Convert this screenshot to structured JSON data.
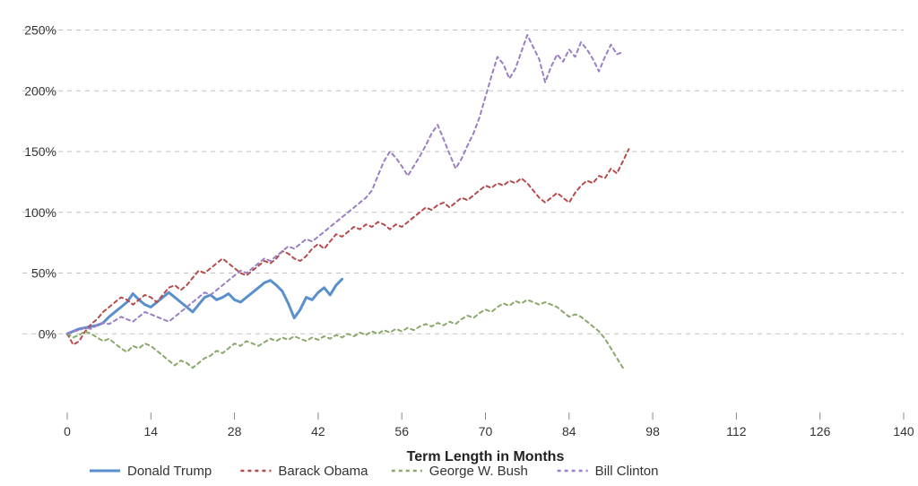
{
  "chart": {
    "type": "line",
    "background_color": "#ffffff",
    "grid_color": "#c0c0c0",
    "axis_label_color": "#333333",
    "axis_label_fontsize": 14,
    "xlabel": "Term Length in Months",
    "xlabel_fontsize": 16,
    "xlabel_fontweight": "bold",
    "xlim": [
      0,
      140
    ],
    "xtick_step": 14,
    "xticks": [
      0,
      14,
      28,
      42,
      56,
      70,
      84,
      98,
      112,
      126,
      140
    ],
    "ylim": [
      -50,
      260
    ],
    "yticks": [
      0,
      50,
      100,
      150,
      200,
      250
    ],
    "ytick_format": "percent",
    "series": [
      {
        "name": "Donald Trump",
        "color": "#5a8fce",
        "dash": "solid",
        "line_width": 3,
        "data": [
          [
            0,
            0
          ],
          [
            1,
            2
          ],
          [
            2,
            4
          ],
          [
            3,
            5
          ],
          [
            4,
            6
          ],
          [
            5,
            7
          ],
          [
            6,
            9
          ],
          [
            7,
            14
          ],
          [
            8,
            18
          ],
          [
            9,
            22
          ],
          [
            10,
            26
          ],
          [
            11,
            33
          ],
          [
            12,
            28
          ],
          [
            13,
            24
          ],
          [
            14,
            22
          ],
          [
            15,
            26
          ],
          [
            16,
            30
          ],
          [
            17,
            34
          ],
          [
            18,
            30
          ],
          [
            19,
            26
          ],
          [
            20,
            22
          ],
          [
            21,
            18
          ],
          [
            22,
            24
          ],
          [
            23,
            30
          ],
          [
            24,
            32
          ],
          [
            25,
            28
          ],
          [
            26,
            30
          ],
          [
            27,
            33
          ],
          [
            28,
            28
          ],
          [
            29,
            26
          ],
          [
            30,
            30
          ],
          [
            31,
            34
          ],
          [
            32,
            38
          ],
          [
            33,
            42
          ],
          [
            34,
            44
          ],
          [
            35,
            40
          ],
          [
            36,
            35
          ],
          [
            37,
            25
          ],
          [
            38,
            13
          ],
          [
            39,
            20
          ],
          [
            40,
            30
          ],
          [
            41,
            28
          ],
          [
            42,
            34
          ],
          [
            43,
            38
          ],
          [
            44,
            32
          ],
          [
            45,
            40
          ],
          [
            46,
            45
          ]
        ]
      },
      {
        "name": "Barack Obama",
        "color": "#b54a4a",
        "dash": "dashed",
        "line_width": 2,
        "data": [
          [
            0,
            0
          ],
          [
            1,
            -9
          ],
          [
            2,
            -6
          ],
          [
            3,
            2
          ],
          [
            4,
            8
          ],
          [
            5,
            12
          ],
          [
            6,
            18
          ],
          [
            7,
            22
          ],
          [
            8,
            26
          ],
          [
            9,
            30
          ],
          [
            10,
            28
          ],
          [
            11,
            24
          ],
          [
            12,
            28
          ],
          [
            13,
            32
          ],
          [
            14,
            30
          ],
          [
            15,
            26
          ],
          [
            16,
            32
          ],
          [
            17,
            38
          ],
          [
            18,
            40
          ],
          [
            19,
            36
          ],
          [
            20,
            40
          ],
          [
            21,
            46
          ],
          [
            22,
            52
          ],
          [
            23,
            50
          ],
          [
            24,
            54
          ],
          [
            25,
            58
          ],
          [
            26,
            62
          ],
          [
            27,
            58
          ],
          [
            28,
            54
          ],
          [
            29,
            50
          ],
          [
            30,
            48
          ],
          [
            31,
            52
          ],
          [
            32,
            56
          ],
          [
            33,
            60
          ],
          [
            34,
            58
          ],
          [
            35,
            62
          ],
          [
            36,
            68
          ],
          [
            37,
            66
          ],
          [
            38,
            62
          ],
          [
            39,
            60
          ],
          [
            40,
            64
          ],
          [
            41,
            70
          ],
          [
            42,
            74
          ],
          [
            43,
            70
          ],
          [
            44,
            76
          ],
          [
            45,
            82
          ],
          [
            46,
            80
          ],
          [
            47,
            84
          ],
          [
            48,
            88
          ],
          [
            49,
            86
          ],
          [
            50,
            90
          ],
          [
            51,
            88
          ],
          [
            52,
            92
          ],
          [
            53,
            90
          ],
          [
            54,
            86
          ],
          [
            55,
            90
          ],
          [
            56,
            88
          ],
          [
            57,
            92
          ],
          [
            58,
            96
          ],
          [
            59,
            100
          ],
          [
            60,
            104
          ],
          [
            61,
            102
          ],
          [
            62,
            106
          ],
          [
            63,
            108
          ],
          [
            64,
            104
          ],
          [
            65,
            108
          ],
          [
            66,
            112
          ],
          [
            67,
            110
          ],
          [
            68,
            114
          ],
          [
            69,
            118
          ],
          [
            70,
            122
          ],
          [
            71,
            120
          ],
          [
            72,
            124
          ],
          [
            73,
            122
          ],
          [
            74,
            126
          ],
          [
            75,
            124
          ],
          [
            76,
            128
          ],
          [
            77,
            124
          ],
          [
            78,
            118
          ],
          [
            79,
            112
          ],
          [
            80,
            108
          ],
          [
            81,
            112
          ],
          [
            82,
            116
          ],
          [
            83,
            112
          ],
          [
            84,
            108
          ],
          [
            85,
            116
          ],
          [
            86,
            122
          ],
          [
            87,
            126
          ],
          [
            88,
            124
          ],
          [
            89,
            130
          ],
          [
            90,
            128
          ],
          [
            91,
            136
          ],
          [
            92,
            132
          ],
          [
            93,
            142
          ],
          [
            94,
            152
          ]
        ]
      },
      {
        "name": "George W. Bush",
        "color": "#8aa86a",
        "dash": "dashed",
        "line_width": 2,
        "data": [
          [
            0,
            0
          ],
          [
            1,
            -3
          ],
          [
            2,
            -1
          ],
          [
            3,
            2
          ],
          [
            4,
            0
          ],
          [
            5,
            -3
          ],
          [
            6,
            -6
          ],
          [
            7,
            -4
          ],
          [
            8,
            -8
          ],
          [
            9,
            -12
          ],
          [
            10,
            -15
          ],
          [
            11,
            -10
          ],
          [
            12,
            -12
          ],
          [
            13,
            -8
          ],
          [
            14,
            -10
          ],
          [
            15,
            -14
          ],
          [
            16,
            -18
          ],
          [
            17,
            -22
          ],
          [
            18,
            -26
          ],
          [
            19,
            -22
          ],
          [
            20,
            -24
          ],
          [
            21,
            -28
          ],
          [
            22,
            -24
          ],
          [
            23,
            -20
          ],
          [
            24,
            -18
          ],
          [
            25,
            -14
          ],
          [
            26,
            -16
          ],
          [
            27,
            -12
          ],
          [
            28,
            -8
          ],
          [
            29,
            -10
          ],
          [
            30,
            -6
          ],
          [
            31,
            -8
          ],
          [
            32,
            -10
          ],
          [
            33,
            -7
          ],
          [
            34,
            -4
          ],
          [
            35,
            -6
          ],
          [
            36,
            -3
          ],
          [
            37,
            -5
          ],
          [
            38,
            -2
          ],
          [
            39,
            -4
          ],
          [
            40,
            -6
          ],
          [
            41,
            -3
          ],
          [
            42,
            -5
          ],
          [
            43,
            -2
          ],
          [
            44,
            -4
          ],
          [
            45,
            -1
          ],
          [
            46,
            -3
          ],
          [
            47,
            0
          ],
          [
            48,
            -2
          ],
          [
            49,
            1
          ],
          [
            50,
            -1
          ],
          [
            51,
            2
          ],
          [
            52,
            0
          ],
          [
            53,
            3
          ],
          [
            54,
            1
          ],
          [
            55,
            4
          ],
          [
            56,
            2
          ],
          [
            57,
            5
          ],
          [
            58,
            3
          ],
          [
            59,
            6
          ],
          [
            60,
            8
          ],
          [
            61,
            6
          ],
          [
            62,
            9
          ],
          [
            63,
            7
          ],
          [
            64,
            10
          ],
          [
            65,
            8
          ],
          [
            66,
            12
          ],
          [
            67,
            15
          ],
          [
            68,
            13
          ],
          [
            69,
            17
          ],
          [
            70,
            20
          ],
          [
            71,
            18
          ],
          [
            72,
            22
          ],
          [
            73,
            25
          ],
          [
            74,
            23
          ],
          [
            75,
            27
          ],
          [
            76,
            25
          ],
          [
            77,
            28
          ],
          [
            78,
            26
          ],
          [
            79,
            24
          ],
          [
            80,
            26
          ],
          [
            81,
            24
          ],
          [
            82,
            22
          ],
          [
            83,
            18
          ],
          [
            84,
            14
          ],
          [
            85,
            16
          ],
          [
            86,
            14
          ],
          [
            87,
            10
          ],
          [
            88,
            6
          ],
          [
            89,
            2
          ],
          [
            90,
            -4
          ],
          [
            91,
            -12
          ],
          [
            92,
            -20
          ],
          [
            93,
            -28
          ]
        ]
      },
      {
        "name": "Bill Clinton",
        "color": "#9a7fc4",
        "dash": "dashed",
        "line_width": 2,
        "data": [
          [
            0,
            0
          ],
          [
            1,
            2
          ],
          [
            2,
            3
          ],
          [
            3,
            5
          ],
          [
            4,
            4
          ],
          [
            5,
            7
          ],
          [
            6,
            9
          ],
          [
            7,
            8
          ],
          [
            8,
            11
          ],
          [
            9,
            14
          ],
          [
            10,
            12
          ],
          [
            11,
            10
          ],
          [
            12,
            14
          ],
          [
            13,
            18
          ],
          [
            14,
            16
          ],
          [
            15,
            14
          ],
          [
            16,
            12
          ],
          [
            17,
            10
          ],
          [
            18,
            14
          ],
          [
            19,
            18
          ],
          [
            20,
            22
          ],
          [
            21,
            26
          ],
          [
            22,
            30
          ],
          [
            23,
            34
          ],
          [
            24,
            32
          ],
          [
            25,
            36
          ],
          [
            26,
            40
          ],
          [
            27,
            44
          ],
          [
            28,
            48
          ],
          [
            29,
            52
          ],
          [
            30,
            50
          ],
          [
            31,
            54
          ],
          [
            32,
            58
          ],
          [
            33,
            62
          ],
          [
            34,
            60
          ],
          [
            35,
            64
          ],
          [
            36,
            68
          ],
          [
            37,
            72
          ],
          [
            38,
            70
          ],
          [
            39,
            74
          ],
          [
            40,
            78
          ],
          [
            41,
            76
          ],
          [
            42,
            80
          ],
          [
            43,
            84
          ],
          [
            44,
            88
          ],
          [
            45,
            92
          ],
          [
            46,
            96
          ],
          [
            47,
            100
          ],
          [
            48,
            104
          ],
          [
            49,
            108
          ],
          [
            50,
            112
          ],
          [
            51,
            118
          ],
          [
            52,
            130
          ],
          [
            53,
            142
          ],
          [
            54,
            150
          ],
          [
            55,
            145
          ],
          [
            56,
            138
          ],
          [
            57,
            130
          ],
          [
            58,
            138
          ],
          [
            59,
            146
          ],
          [
            60,
            155
          ],
          [
            61,
            165
          ],
          [
            62,
            172
          ],
          [
            63,
            160
          ],
          [
            64,
            148
          ],
          [
            65,
            136
          ],
          [
            66,
            144
          ],
          [
            67,
            155
          ],
          [
            68,
            165
          ],
          [
            69,
            178
          ],
          [
            70,
            195
          ],
          [
            71,
            212
          ],
          [
            72,
            228
          ],
          [
            73,
            222
          ],
          [
            74,
            210
          ],
          [
            75,
            218
          ],
          [
            76,
            232
          ],
          [
            77,
            246
          ],
          [
            78,
            236
          ],
          [
            79,
            226
          ],
          [
            80,
            207
          ],
          [
            81,
            220
          ],
          [
            82,
            230
          ],
          [
            83,
            224
          ],
          [
            84,
            234
          ],
          [
            85,
            228
          ],
          [
            86,
            240
          ],
          [
            87,
            234
          ],
          [
            88,
            226
          ],
          [
            89,
            216
          ],
          [
            90,
            228
          ],
          [
            91,
            238
          ],
          [
            92,
            230
          ],
          [
            93,
            232
          ]
        ]
      }
    ],
    "legend": {
      "items": [
        "Donald Trump",
        "Barack Obama",
        "George W. Bush",
        "Bill Clinton"
      ],
      "fontsize": 15,
      "position": "bottom"
    }
  }
}
